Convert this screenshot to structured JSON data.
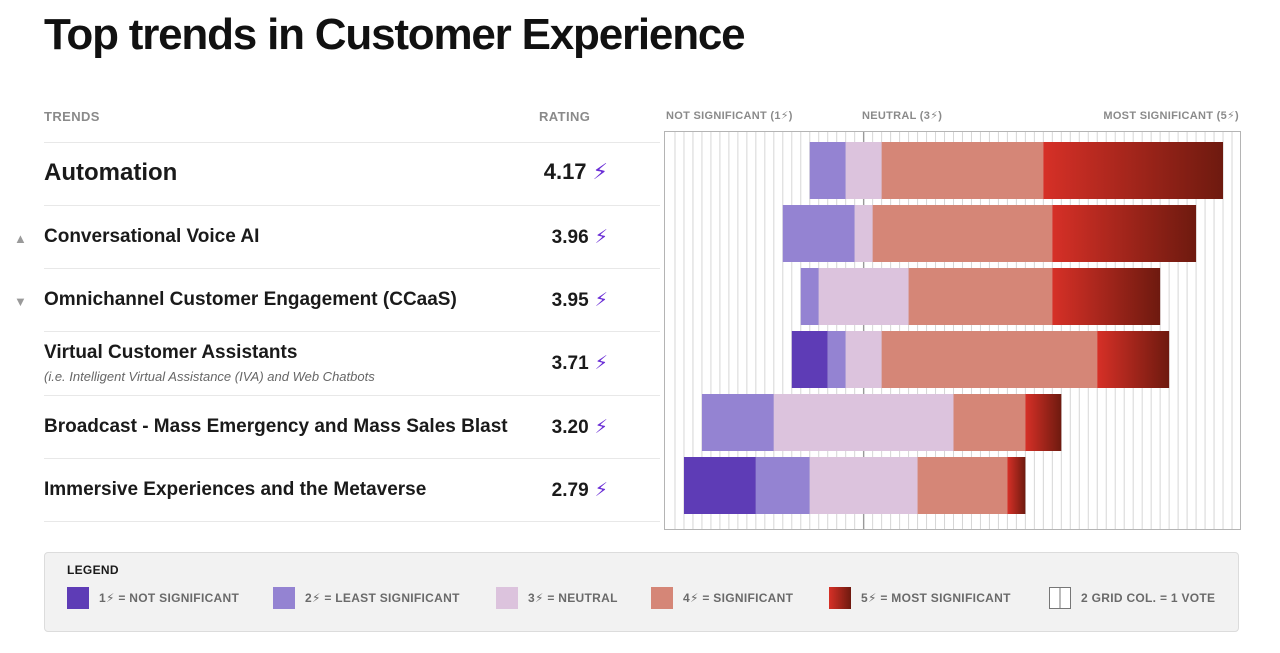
{
  "title": "Top trends in Customer Experience",
  "headers": {
    "trends": "TRENDS",
    "rating": "RATING",
    "not_significant": "NOT SIGNIFICANT (1⚡)",
    "neutral": "NEUTRAL (3⚡)",
    "most_significant": "MOST SIGNIFICANT (5⚡)"
  },
  "bolt": "⚡",
  "rows": [
    {
      "label": "Automation",
      "sub": "",
      "rating": "4.17",
      "trend": ""
    },
    {
      "label": "Conversational Voice AI",
      "sub": "",
      "rating": "3.96",
      "trend": "▲"
    },
    {
      "label": "Omnichannel Customer Engagement (CCaaS)",
      "sub": "",
      "rating": "3.95",
      "trend": "▼"
    },
    {
      "label": "Virtual Customer Assistants",
      "sub": "(i.e. Intelligent Virtual Assistance (IVA) and Web Chatbots",
      "rating": "3.71",
      "trend": ""
    },
    {
      "label": "Broadcast - Mass Emergency and Mass Sales Blast",
      "sub": "",
      "rating": "3.20",
      "trend": ""
    },
    {
      "label": "Immersive Experiences and the Metaverse",
      "sub": "",
      "rating": "2.79",
      "trend": ""
    }
  ],
  "colors": {
    "c1": "#5e3cb6",
    "c2": "#9483d2",
    "c3": "#dcc3dd",
    "c4": "#d58677",
    "c5a": "#d63027",
    "c5b": "#6e1a0f",
    "bolt": "#6a2ed6"
  },
  "chart_data": {
    "type": "bar",
    "subtype": "stacked-diverging",
    "title": "Top trends in Customer Experience",
    "categories": [
      "Automation",
      "Conversational Voice AI",
      "Omnichannel Customer Engagement (CCaaS)",
      "Virtual Customer Assistants",
      "Broadcast - Mass Emergency and Mass Sales Blast",
      "Immersive Experiences and the Metaverse"
    ],
    "unit": "votes (2 grid columns = 1 vote)",
    "grid_columns_total": 64,
    "neutral_column": 22,
    "offsets": [
      16,
      13,
      15,
      14,
      4,
      2
    ],
    "series": [
      {
        "name": "1 = Not significant",
        "values": [
          0,
          0,
          0,
          2,
          0,
          4
        ]
      },
      {
        "name": "2 = Least significant",
        "values": [
          2,
          4,
          1,
          1,
          4,
          3
        ]
      },
      {
        "name": "3 = Neutral",
        "values": [
          2,
          1,
          5,
          2,
          10,
          6
        ]
      },
      {
        "name": "4 = Significant",
        "values": [
          9,
          10,
          8,
          12,
          4,
          5
        ]
      },
      {
        "name": "5 = Most significant",
        "values": [
          10,
          8,
          6,
          4,
          2,
          1
        ]
      }
    ],
    "ratings": [
      4.17,
      3.96,
      3.95,
      3.71,
      3.2,
      2.79
    ]
  },
  "legend": {
    "title": "LEGEND",
    "items": [
      {
        "label": "1⚡ = NOT SIGNIFICANT"
      },
      {
        "label": "2⚡ = LEAST SIGNIFICANT"
      },
      {
        "label": "3⚡ = NEUTRAL"
      },
      {
        "label": "4⚡ = SIGNIFICANT"
      },
      {
        "label": "5⚡ = MOST SIGNIFICANT"
      },
      {
        "label": "2 GRID COL. = 1 VOTE"
      }
    ]
  }
}
